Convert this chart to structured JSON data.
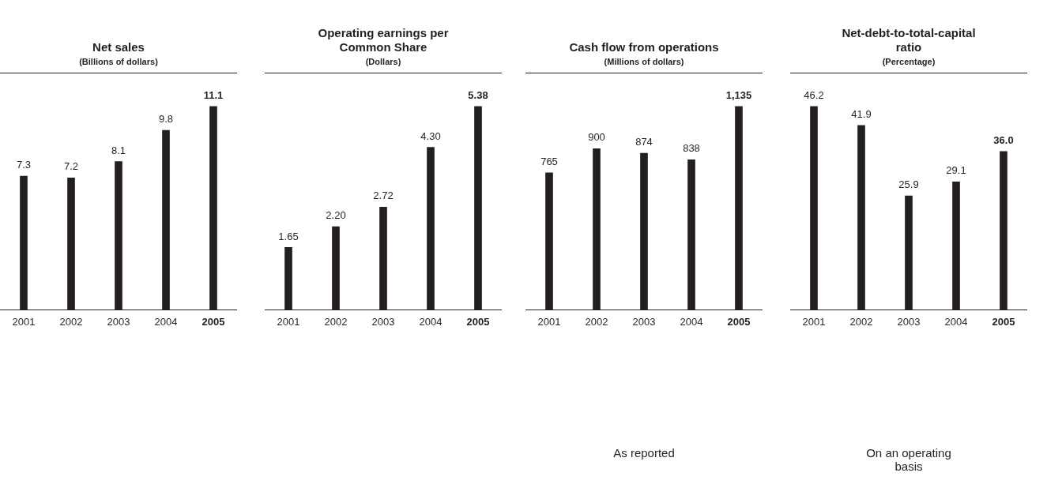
{
  "chart_data": [
    {
      "type": "bar",
      "title": "Net sales",
      "subtitle": "(Billions of dollars)",
      "categories": [
        "2001",
        "2002",
        "2003",
        "2004",
        "2005"
      ],
      "values": [
        7.3,
        7.2,
        8.1,
        9.8,
        11.1
      ],
      "value_labels": [
        "7.3",
        "7.2",
        "8.1",
        "9.8",
        "11.1"
      ],
      "color": "#231f20"
    },
    {
      "type": "bar",
      "title": "Operating earnings per Common Share",
      "subtitle": "(Dollars)",
      "categories": [
        "2001",
        "2002",
        "2003",
        "2004",
        "2005"
      ],
      "values": [
        1.65,
        2.2,
        2.72,
        4.3,
        5.38
      ],
      "value_labels": [
        "1.65",
        "2.20",
        "2.72",
        "4.30",
        "5.38"
      ],
      "color": "#231f20"
    },
    {
      "type": "bar",
      "title": "Cash flow from operations",
      "subtitle": "(Millions of dollars)",
      "categories": [
        "2001",
        "2002",
        "2003",
        "2004",
        "2005"
      ],
      "values": [
        765,
        900,
        874,
        838,
        1135
      ],
      "value_labels": [
        "765",
        "900",
        "874",
        "838",
        "1,135"
      ],
      "color": "#231f20",
      "annotations": [
        "As reported"
      ]
    },
    {
      "type": "bar",
      "title": "Net-debt-to-total-capital ratio",
      "subtitle": "(Percentage)",
      "categories": [
        "2001",
        "2002",
        "2003",
        "2004",
        "2005"
      ],
      "values": [
        46.2,
        41.9,
        25.9,
        29.1,
        36.0
      ],
      "value_labels": [
        "46.2",
        "41.9",
        "25.9",
        "29.1",
        "36.0"
      ],
      "color": "#231f20",
      "annotations": [
        "On an operating basis"
      ]
    }
  ]
}
